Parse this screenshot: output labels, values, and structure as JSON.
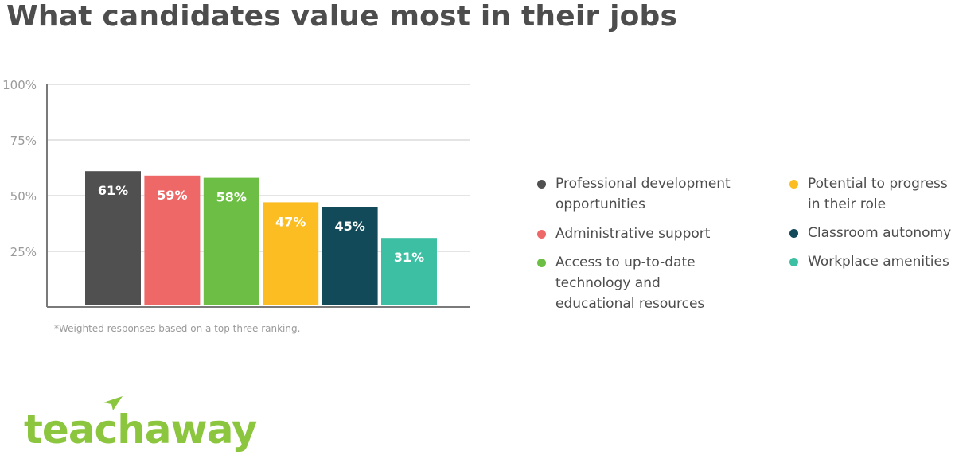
{
  "title": "What candidates value most in their jobs",
  "footnote": "*Weighted responses based on a top three ranking.",
  "logo_text": "teachaway",
  "chart_data": {
    "type": "bar",
    "title": "What candidates value most in their jobs",
    "xlabel": "",
    "ylabel": "",
    "ylim": [
      0,
      100
    ],
    "yticks": [
      "25%",
      "50%",
      "75%",
      "100%"
    ],
    "ytick_values": [
      25,
      50,
      75,
      100
    ],
    "grid": true,
    "legend_position": "right",
    "categories": [
      "Professional development opportunities",
      "Administrative support",
      "Access to up-to-date technology and educational resources",
      "Potential to progress in their role",
      "Classroom autonomy",
      "Workplace amenities"
    ],
    "values": [
      61,
      59,
      58,
      47,
      45,
      31
    ],
    "data_labels": [
      "61%",
      "59%",
      "58%",
      "47%",
      "45%",
      "31%"
    ],
    "colors": [
      "#505050",
      "#ef6868",
      "#6cbf44",
      "#fbbd21",
      "#124a5a",
      "#3dbfa3"
    ]
  },
  "legend": [
    {
      "lines": [
        "Professional development",
        "opportunities"
      ],
      "color": "#505050"
    },
    {
      "lines": [
        "Administrative support"
      ],
      "color": "#ef6868"
    },
    {
      "lines": [
        "Access to up-to-date",
        "technology and",
        "educational resources"
      ],
      "color": "#6cbf44"
    },
    {
      "lines": [
        "Potential to progress",
        "in their role"
      ],
      "color": "#fbbd21"
    },
    {
      "lines": [
        "Classroom autonomy"
      ],
      "color": "#124a5a"
    },
    {
      "lines": [
        "Workplace amenities"
      ],
      "color": "#3dbfa3"
    }
  ]
}
